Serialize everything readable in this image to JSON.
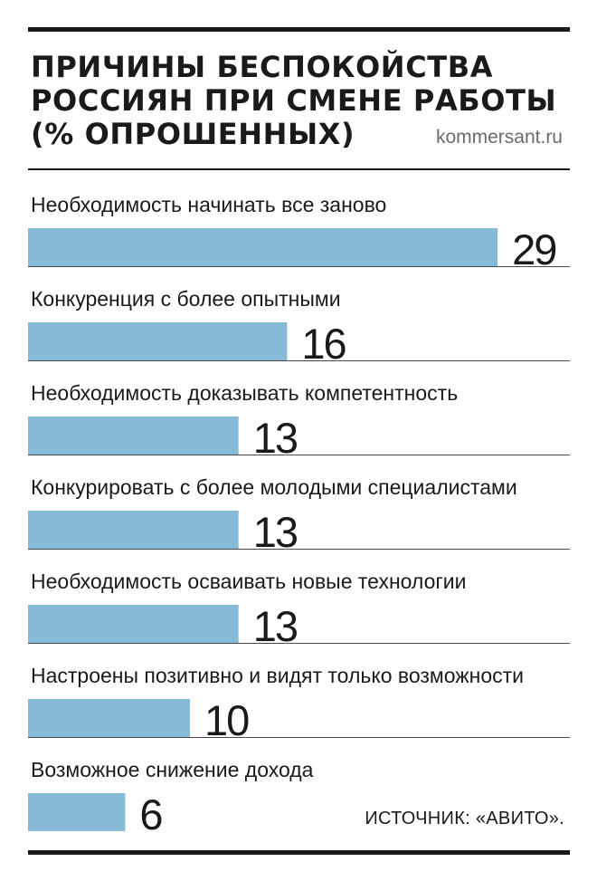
{
  "header": {
    "title_lines": [
      "ПРИЧИНЫ БЕСПОКОЙСТВА",
      "РОССИЯН ПРИ СМЕНЕ РАБОТЫ",
      "(% ОПРОШЕННЫХ)"
    ],
    "site": "kommersant.ru"
  },
  "footer": {
    "source": "ИСТОЧНИК: «АВИТО»."
  },
  "chart_data": {
    "type": "bar",
    "orientation": "horizontal",
    "title": "ПРИЧИНЫ БЕСПОКОЙСТВА РОССИЯН ПРИ СМЕНЕ РАБОТЫ (% ОПРОШЕННЫХ)",
    "categories": [
      "Необходимость начинать все заново",
      "Конкуренция с более опытными",
      "Необходимость доказывать компетентность",
      "Конкурировать с более молодыми специалистами",
      "Необходимость осваивать новые технологии",
      "Настроены позитивно и видят только возможности",
      "Возможное снижение  дохода"
    ],
    "values": [
      29,
      16,
      13,
      13,
      13,
      10,
      6
    ],
    "unit": "%",
    "bar_color": "#86bad6",
    "grid": false,
    "legend": "none"
  }
}
